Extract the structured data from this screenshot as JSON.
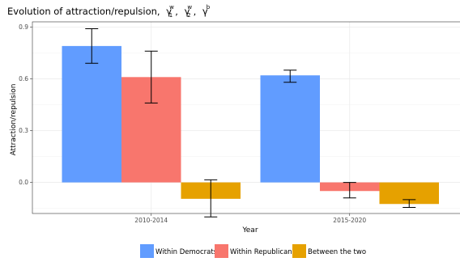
{
  "chart_data": {
    "type": "bar",
    "title": {
      "main": "Evolution of attraction/repulsion,",
      "symbols": [
        {
          "base": "γ",
          "sup": "w",
          "sub": "1"
        },
        {
          "base": "γ",
          "sup": "w",
          "sub": "2"
        },
        {
          "base": "γ",
          "sup": "b",
          "sub": ""
        }
      ]
    },
    "xlabel": "Year",
    "ylabel": "Attraction/repulsion",
    "categories": [
      "2010-2014",
      "2015-2020"
    ],
    "ylim": [
      -0.18,
      0.93
    ],
    "yticks": [
      0.0,
      0.3,
      0.6,
      0.9
    ],
    "ytick_labels": [
      "0.0",
      "0.3",
      "0.6",
      "0.9"
    ],
    "grid": true,
    "legend_position": "bottom",
    "series": [
      {
        "name": "Within Democrats",
        "color": "#619CFF",
        "values": [
          0.79,
          0.62
        ],
        "err_low": [
          0.69,
          0.58
        ],
        "err_high": [
          0.89,
          0.65
        ]
      },
      {
        "name": "Within Republicans",
        "color": "#F8766D",
        "values": [
          0.61,
          -0.05
        ],
        "err_low": [
          0.46,
          -0.09
        ],
        "err_high": [
          0.76,
          0.0
        ]
      },
      {
        "name": "Between the two",
        "color": "#E6A100",
        "values": [
          -0.095,
          -0.125
        ],
        "err_low": [
          -0.2,
          -0.145
        ],
        "err_high": [
          0.015,
          -0.1
        ]
      }
    ]
  }
}
